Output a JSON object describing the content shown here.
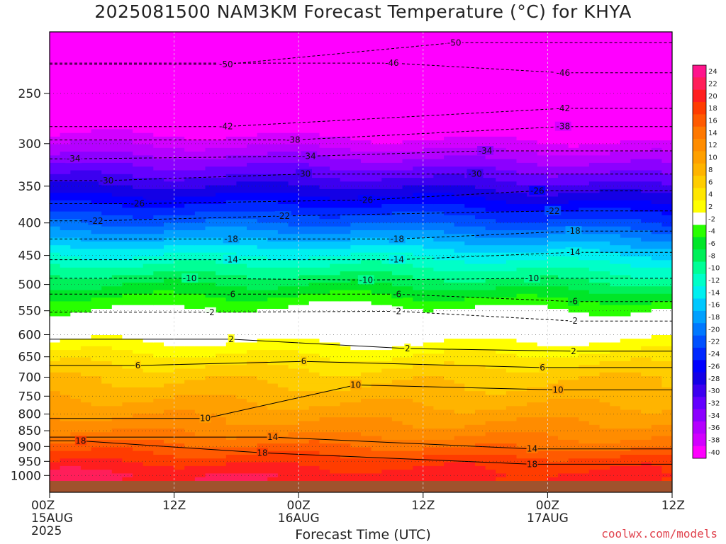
{
  "chart_data": {
    "type": "heatmap",
    "title": "2025081500 NAM3KM Forecast Temperature (°C) for KHYA",
    "xlabel": "Forecast Time (UTC)",
    "ylabel": "",
    "x_ticks": [
      {
        "label": "00Z",
        "sub": "15AUG",
        "sub2": "2025",
        "hour": 0
      },
      {
        "label": "12Z",
        "sub": "",
        "sub2": "",
        "hour": 12
      },
      {
        "label": "00Z",
        "sub": "16AUG",
        "sub2": "",
        "hour": 24
      },
      {
        "label": "12Z",
        "sub": "",
        "sub2": "",
        "hour": 36
      },
      {
        "label": "00Z",
        "sub": "17AUG",
        "sub2": "",
        "hour": 48
      },
      {
        "label": "12Z",
        "sub": "",
        "sub2": "",
        "hour": 60
      }
    ],
    "xlim": [
      0,
      60
    ],
    "y_ticks": [
      250,
      300,
      350,
      400,
      450,
      500,
      550,
      600,
      650,
      700,
      750,
      800,
      850,
      900,
      950,
      1000
    ],
    "ylim": [
      200,
      1020
    ],
    "yscale": "log",
    "pressure_levels": [
      1000,
      950,
      900,
      850,
      800,
      750,
      700,
      650,
      600,
      550,
      500,
      450,
      400,
      350,
      300,
      250,
      200
    ],
    "temperature_profile_start": [
      23,
      20,
      17,
      14,
      12,
      10,
      8,
      5,
      1,
      -2,
      -6,
      -12,
      -20,
      -28,
      -36,
      -46,
      -53
    ],
    "temperature_profile_mid": [
      21,
      19,
      16,
      13,
      11,
      9,
      7,
      4,
      0.5,
      -1,
      -6,
      -12,
      -20,
      -28,
      -37,
      -46,
      -53
    ],
    "temperature_profile_end": [
      20,
      19,
      15,
      13,
      11,
      9,
      8,
      5,
      1,
      -2,
      -8,
      -14,
      -22,
      -30,
      -38,
      -47,
      -54
    ],
    "contour_labels": [
      {
        "text": "-50",
        "hour": 39,
        "p": 208
      },
      {
        "text": "-50",
        "hour": 17,
        "p": 225
      },
      {
        "text": "-46",
        "hour": 33,
        "p": 224
      },
      {
        "text": "-46",
        "hour": 49.5,
        "p": 232
      },
      {
        "text": "-42",
        "hour": 49.5,
        "p": 264
      },
      {
        "text": "-42",
        "hour": 17,
        "p": 282
      },
      {
        "text": "-38",
        "hour": 49.5,
        "p": 282
      },
      {
        "text": "-38",
        "hour": 23.5,
        "p": 296
      },
      {
        "text": "-34",
        "hour": 2.3,
        "p": 317
      },
      {
        "text": "-34",
        "hour": 25,
        "p": 314
      },
      {
        "text": "-34",
        "hour": 42,
        "p": 308
      },
      {
        "text": "-30",
        "hour": 5.5,
        "p": 343
      },
      {
        "text": "-30",
        "hour": 24.5,
        "p": 335
      },
      {
        "text": "-30",
        "hour": 41,
        "p": 335
      },
      {
        "text": "-26",
        "hour": 8.5,
        "p": 373
      },
      {
        "text": "-26",
        "hour": 30.5,
        "p": 368
      },
      {
        "text": "-26",
        "hour": 47,
        "p": 356
      },
      {
        "text": "-22",
        "hour": 4.5,
        "p": 397
      },
      {
        "text": "-22",
        "hour": 22.5,
        "p": 390
      },
      {
        "text": "-22",
        "hour": 48.5,
        "p": 383
      },
      {
        "text": "-18",
        "hour": 17.5,
        "p": 424
      },
      {
        "text": "-18",
        "hour": 33.5,
        "p": 424
      },
      {
        "text": "-18",
        "hour": 50.5,
        "p": 412
      },
      {
        "text": "-14",
        "hour": 17.5,
        "p": 457
      },
      {
        "text": "-14",
        "hour": 33.5,
        "p": 457
      },
      {
        "text": "-14",
        "hour": 50.5,
        "p": 445
      },
      {
        "text": "-10",
        "hour": 13.5,
        "p": 489
      },
      {
        "text": "-10",
        "hour": 30.5,
        "p": 492
      },
      {
        "text": "-10",
        "hour": 46.5,
        "p": 489
      },
      {
        "text": "-6",
        "hour": 17.5,
        "p": 518
      },
      {
        "text": "-6",
        "hour": 33.5,
        "p": 518
      },
      {
        "text": "-6",
        "hour": 50.5,
        "p": 532
      },
      {
        "text": "-2",
        "hour": 15.5,
        "p": 553
      },
      {
        "text": "-2",
        "hour": 33.5,
        "p": 551
      },
      {
        "text": "-2",
        "hour": 50.5,
        "p": 571
      },
      {
        "text": "2",
        "hour": 17.5,
        "p": 610
      },
      {
        "text": "2",
        "hour": 34.5,
        "p": 631
      },
      {
        "text": "2",
        "hour": 50.5,
        "p": 637
      },
      {
        "text": "6",
        "hour": 8.5,
        "p": 671
      },
      {
        "text": "6",
        "hour": 24.5,
        "p": 661
      },
      {
        "text": "6",
        "hour": 47.5,
        "p": 676
      },
      {
        "text": "10",
        "hour": 15,
        "p": 813
      },
      {
        "text": "10",
        "hour": 29.5,
        "p": 720
      },
      {
        "text": "10",
        "hour": 49,
        "p": 733
      },
      {
        "text": "14",
        "hour": 21.5,
        "p": 870
      },
      {
        "text": "14",
        "hour": 46.5,
        "p": 908
      },
      {
        "text": "18",
        "hour": 3,
        "p": 882
      },
      {
        "text": "18",
        "hour": 20.5,
        "p": 921
      },
      {
        "text": "18",
        "hour": 46.5,
        "p": 960
      }
    ],
    "colorbar": {
      "labels": [
        "24",
        "22",
        "20",
        "18",
        "16",
        "14",
        "12",
        "10",
        "8",
        "6",
        "4",
        "2",
        "-2",
        "-4",
        "-6",
        "-8",
        "-10",
        "-12",
        "-14",
        "-16",
        "-18",
        "-20",
        "-22",
        "-24",
        "-26",
        "-28",
        "-30",
        "-32",
        "-34",
        "-36",
        "-38",
        "-40"
      ],
      "colors": [
        "#ff148c",
        "#ff1e5a",
        "#ff1e1e",
        "#ff3c00",
        "#ff5a00",
        "#ff7800",
        "#ff8c00",
        "#ffa000",
        "#ffb400",
        "#ffcd00",
        "#ffe600",
        "#ffff00",
        "#ffffff",
        "#28ff00",
        "#00e628",
        "#00f05a",
        "#00ff96",
        "#00ffc8",
        "#00f0f0",
        "#00c8ff",
        "#00a0ff",
        "#0078ff",
        "#0050ff",
        "#0028ff",
        "#0000ff",
        "#1400e6",
        "#3c00f0",
        "#6400ff",
        "#8c00ff",
        "#b400ff",
        "#d200ff",
        "#ff00ff"
      ]
    },
    "watermark": "coolwx.com/models"
  }
}
